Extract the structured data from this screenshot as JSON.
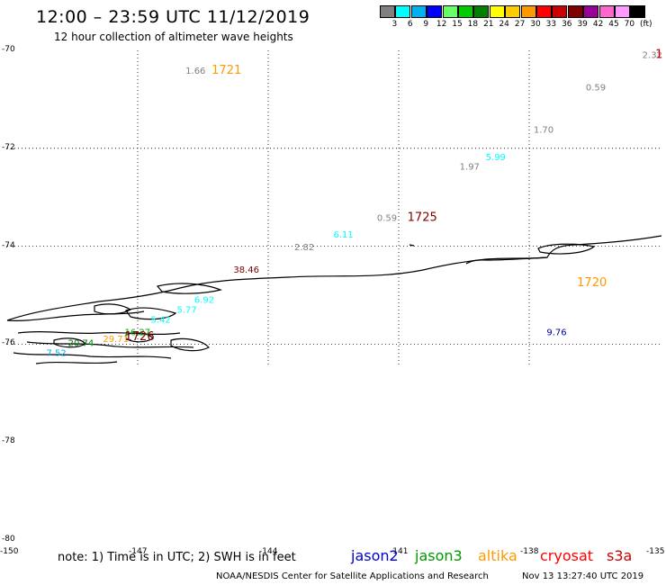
{
  "header": {
    "title": "12:00 – 23:59 UTC 11/12/2019",
    "subtitle": "12 hour collection of altimeter wave heights"
  },
  "legend": {
    "colors": [
      "#808080",
      "#00ffff",
      "#00b0f0",
      "#0000ff",
      "#66ff66",
      "#00cc00",
      "#008000",
      "#ffff00",
      "#ffcc00",
      "#ff9900",
      "#ff0000",
      "#cc0000",
      "#800000",
      "#990099",
      "#ff66cc",
      "#ff99ff",
      "#000000"
    ],
    "labels": [
      "3",
      "6",
      "9",
      "12",
      "15",
      "18",
      "21",
      "24",
      "27",
      "30",
      "33",
      "36",
      "39",
      "42",
      "45",
      "70"
    ],
    "unit": "(ft)"
  },
  "chart_data": {
    "type": "scatter",
    "title": "12:00 – 23:59 UTC 11/12/2019",
    "subtitle": "12 hour collection of altimeter wave heights",
    "xlim": [
      -150,
      -135
    ],
    "ylim": [
      -80,
      -70
    ],
    "x_ticks": [
      -150,
      -147,
      -144,
      -141,
      -138,
      -135
    ],
    "y_ticks": [
      -70,
      -72,
      -74,
      -76,
      -78,
      -80
    ],
    "x_tick_labels": [
      "-150",
      "-147",
      "-144",
      "-141",
      "-138",
      "-135"
    ],
    "y_tick_labels": [
      "-70",
      "-72",
      "-74",
      "-76",
      "-78",
      "-80"
    ],
    "grid": true,
    "unit": "ft",
    "points": [
      {
        "lon": -145.9,
        "lat": -70.48,
        "value": "1.66",
        "color": "#808080"
      },
      {
        "lon": -135.4,
        "lat": -70.16,
        "value": "2.32",
        "color": "#808080"
      },
      {
        "lon": -136.7,
        "lat": -70.82,
        "value": "0.59",
        "color": "#808080"
      },
      {
        "lon": -137.9,
        "lat": -71.68,
        "value": "1.70",
        "color": "#808080"
      },
      {
        "lon": -139.0,
        "lat": -72.24,
        "value": "5.99",
        "color": "#00ffff"
      },
      {
        "lon": -139.6,
        "lat": -72.44,
        "value": "1.97",
        "color": "#808080"
      },
      {
        "lon": -141.5,
        "lat": -73.48,
        "value": "0.59",
        "color": "#808080"
      },
      {
        "lon": -142.5,
        "lat": -73.82,
        "value": "6.11",
        "color": "#00ffff"
      },
      {
        "lon": -143.4,
        "lat": -74.08,
        "value": "2.82",
        "color": "#808080"
      },
      {
        "lon": -144.8,
        "lat": -74.54,
        "value": "38.46",
        "color": "#800000"
      },
      {
        "lon": -145.7,
        "lat": -75.16,
        "value": "6.92",
        "color": "#00ffff"
      },
      {
        "lon": -146.1,
        "lat": -75.36,
        "value": "5.77",
        "color": "#00ffff"
      },
      {
        "lon": -146.7,
        "lat": -75.56,
        "value": "5.42",
        "color": "#00ffff"
      },
      {
        "lon": -147.3,
        "lat": -75.82,
        "value": "16.27",
        "color": "#00aa00"
      },
      {
        "lon": -147.8,
        "lat": -75.96,
        "value": "29.71",
        "color": "#ff9900"
      },
      {
        "lon": -148.6,
        "lat": -76.04,
        "value": "20.74",
        "color": "#008000"
      },
      {
        "lon": -149.1,
        "lat": -76.24,
        "value": "7.52",
        "color": "#00b0f0"
      },
      {
        "lon": -137.6,
        "lat": -75.82,
        "value": "9.76",
        "color": "#000099"
      }
    ],
    "pass_labels": [
      {
        "lon": -145.3,
        "lat": -70.48,
        "value": "1721",
        "color": "#ff9900"
      },
      {
        "lon": -135.1,
        "lat": -70.16,
        "value": "1",
        "color": "#cc0000"
      },
      {
        "lon": -140.8,
        "lat": -73.48,
        "value": "1725",
        "color": "#800000"
      },
      {
        "lon": -147.3,
        "lat": -75.92,
        "value": "1726",
        "color": "#800000"
      },
      {
        "lon": -136.9,
        "lat": -74.82,
        "value": "1720",
        "color": "#ff9900"
      }
    ]
  },
  "note": "note: 1) Time is in UTC; 2) SWH is in feet",
  "satellites": [
    {
      "name": "jason2",
      "color": "#0000cc"
    },
    {
      "name": "jason3",
      "color": "#009900"
    },
    {
      "name": "altika",
      "color": "#ff9900"
    },
    {
      "name": "cryosat",
      "color": "#ff0000"
    },
    {
      "name": "s3a",
      "color": "#cc0000"
    }
  ],
  "footer": {
    "credit": "NOAA/NESDIS Center for Satellite Applications and Research",
    "timestamp": "Nov 13 13:27:40 UTC 2019"
  }
}
